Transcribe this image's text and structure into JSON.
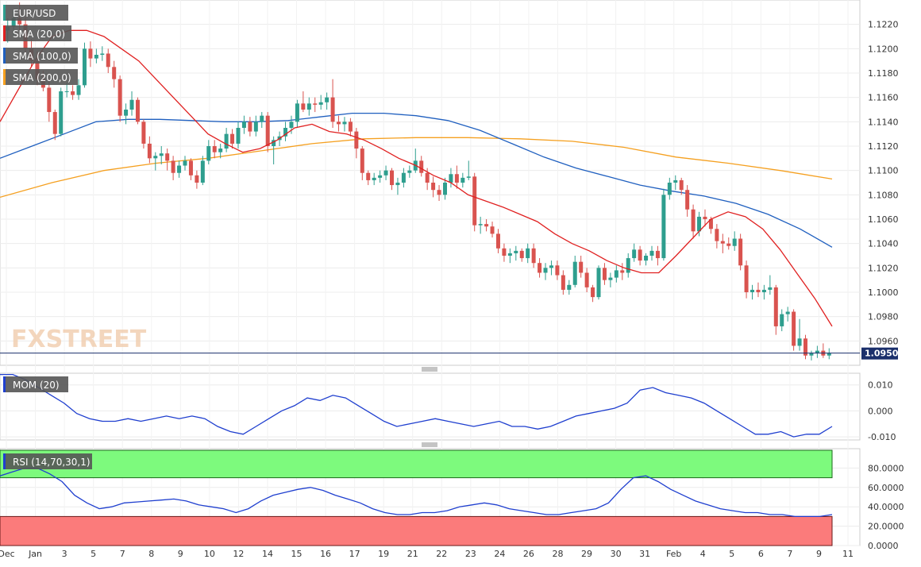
{
  "chart_data": [
    {
      "type": "candlestick",
      "symbol_label": "EUR/USD",
      "indicator_labels": [
        "SMA (20,0)",
        "SMA (100,0)",
        "SMA (200,0)"
      ],
      "indicator_colors": [
        "#e02020",
        "#1f5fbf",
        "#f5a020"
      ],
      "watermark": "FXSTREET",
      "current_price": "1.0950",
      "y_ticks": [
        "1.1220",
        "1.1200",
        "1.1180",
        "1.1160",
        "1.1140",
        "1.1120",
        "1.1100",
        "1.1080",
        "1.1060",
        "1.1040",
        "1.1020",
        "1.1000",
        "1.0980",
        "1.0960"
      ],
      "ylim": [
        1.094,
        1.124
      ],
      "bull_color": "#2e9e8e",
      "bear_color": "#d9534f",
      "candles": [
        [
          1.1215,
          1.1225,
          1.1205,
          1.1218
        ],
        [
          1.1218,
          1.1232,
          1.121,
          1.1225
        ],
        [
          1.1225,
          1.1238,
          1.1215,
          1.122
        ],
        [
          1.122,
          1.1226,
          1.1196,
          1.12
        ],
        [
          1.12,
          1.1208,
          1.1185,
          1.119
        ],
        [
          1.119,
          1.1198,
          1.117,
          1.1175
        ],
        [
          1.1175,
          1.1182,
          1.1165,
          1.1168
        ],
        [
          1.1168,
          1.1175,
          1.114,
          1.1148
        ],
        [
          1.1148,
          1.115,
          1.1125,
          1.113
        ],
        [
          1.113,
          1.1168,
          1.1128,
          1.1165
        ],
        [
          1.1165,
          1.1172,
          1.116,
          1.1165
        ],
        [
          1.1165,
          1.117,
          1.1158,
          1.1162
        ],
        [
          1.1162,
          1.1175,
          1.1158,
          1.117
        ],
        [
          1.117,
          1.1205,
          1.1168,
          1.12
        ],
        [
          1.12,
          1.1206,
          1.1185,
          1.1192
        ],
        [
          1.1192,
          1.12,
          1.1188,
          1.1195
        ],
        [
          1.1195,
          1.1202,
          1.119,
          1.1196
        ],
        [
          1.1196,
          1.12,
          1.118,
          1.1185
        ],
        [
          1.1185,
          1.119,
          1.1168,
          1.1175
        ],
        [
          1.1175,
          1.1178,
          1.114,
          1.1145
        ],
        [
          1.1145,
          1.1155,
          1.1138,
          1.115
        ],
        [
          1.115,
          1.1165,
          1.1145,
          1.1158
        ],
        [
          1.1158,
          1.116,
          1.1138,
          1.114
        ],
        [
          1.114,
          1.1142,
          1.1118,
          1.1122
        ],
        [
          1.1122,
          1.1128,
          1.1106,
          1.111
        ],
        [
          1.111,
          1.1115,
          1.11,
          1.1112
        ],
        [
          1.1112,
          1.112,
          1.1105,
          1.1114
        ],
        [
          1.1114,
          1.1118,
          1.11,
          1.1108
        ],
        [
          1.1108,
          1.1112,
          1.1092,
          1.1098
        ],
        [
          1.1098,
          1.1108,
          1.1094,
          1.1104
        ],
        [
          1.1104,
          1.1112,
          1.11,
          1.1108
        ],
        [
          1.1108,
          1.111,
          1.1092,
          1.1096
        ],
        [
          1.1096,
          1.11,
          1.1085,
          1.109
        ],
        [
          1.109,
          1.1112,
          1.1088,
          1.1108
        ],
        [
          1.1108,
          1.1125,
          1.1105,
          1.112
        ],
        [
          1.112,
          1.1125,
          1.111,
          1.1115
        ],
        [
          1.1115,
          1.1122,
          1.111,
          1.1118
        ],
        [
          1.1118,
          1.1135,
          1.1115,
          1.113
        ],
        [
          1.113,
          1.1134,
          1.1118,
          1.1122
        ],
        [
          1.1122,
          1.114,
          1.1118,
          1.1135
        ],
        [
          1.1135,
          1.1145,
          1.113,
          1.114
        ],
        [
          1.114,
          1.1144,
          1.1128,
          1.1132
        ],
        [
          1.1132,
          1.1145,
          1.1128,
          1.114
        ],
        [
          1.114,
          1.1148,
          1.1135,
          1.1145
        ],
        [
          1.1145,
          1.1148,
          1.1115,
          1.112
        ],
        [
          1.112,
          1.1128,
          1.1105,
          1.1125
        ],
        [
          1.1125,
          1.1132,
          1.112,
          1.1128
        ],
        [
          1.1128,
          1.114,
          1.1124,
          1.1135
        ],
        [
          1.1135,
          1.1145,
          1.113,
          1.114
        ],
        [
          1.114,
          1.1158,
          1.1135,
          1.1155
        ],
        [
          1.1155,
          1.1165,
          1.1148,
          1.115
        ],
        [
          1.115,
          1.116,
          1.1145,
          1.1155
        ],
        [
          1.1155,
          1.116,
          1.1148,
          1.1154
        ],
        [
          1.1154,
          1.1162,
          1.115,
          1.1156
        ],
        [
          1.1156,
          1.1164,
          1.115,
          1.116
        ],
        [
          1.116,
          1.1175,
          1.1135,
          1.114
        ],
        [
          1.114,
          1.1145,
          1.1132,
          1.1138
        ],
        [
          1.1138,
          1.1144,
          1.1132,
          1.114
        ],
        [
          1.114,
          1.1143,
          1.1128,
          1.1132
        ],
        [
          1.1132,
          1.1135,
          1.111,
          1.1118
        ],
        [
          1.1118,
          1.112,
          1.1092,
          1.1098
        ],
        [
          1.1098,
          1.11,
          1.1088,
          1.1092
        ],
        [
          1.1092,
          1.1098,
          1.1088,
          1.1094
        ],
        [
          1.1094,
          1.11,
          1.109,
          1.1096
        ],
        [
          1.1096,
          1.1104,
          1.1092,
          1.11
        ],
        [
          1.11,
          1.1102,
          1.1084,
          1.1088
        ],
        [
          1.1088,
          1.1094,
          1.108,
          1.109
        ],
        [
          1.109,
          1.1102,
          1.1086,
          1.1098
        ],
        [
          1.1098,
          1.1104,
          1.1094,
          1.11
        ],
        [
          1.11,
          1.1118,
          1.1098,
          1.1108
        ],
        [
          1.1108,
          1.1112,
          1.1095,
          1.1098
        ],
        [
          1.1098,
          1.1102,
          1.1084,
          1.109
        ],
        [
          1.109,
          1.1095,
          1.1078,
          1.1084
        ],
        [
          1.1084,
          1.1088,
          1.1075,
          1.108
        ],
        [
          1.108,
          1.1094,
          1.1076,
          1.109
        ],
        [
          1.109,
          1.1102,
          1.1086,
          1.1097
        ],
        [
          1.1097,
          1.1104,
          1.1085,
          1.109
        ],
        [
          1.109,
          1.1098,
          1.1086,
          1.1094
        ],
        [
          1.1094,
          1.1108,
          1.1092,
          1.1095
        ],
        [
          1.1095,
          1.1098,
          1.105,
          1.1055
        ],
        [
          1.1055,
          1.1062,
          1.1048,
          1.1056
        ],
        [
          1.1056,
          1.106,
          1.105,
          1.1054
        ],
        [
          1.1054,
          1.1058,
          1.1045,
          1.1048
        ],
        [
          1.1048,
          1.1052,
          1.1032,
          1.1036
        ],
        [
          1.1036,
          1.104,
          1.1025,
          1.103
        ],
        [
          1.103,
          1.1036,
          1.1024,
          1.1032
        ],
        [
          1.1032,
          1.1038,
          1.1026,
          1.1034
        ],
        [
          1.1034,
          1.1036,
          1.1025,
          1.1028
        ],
        [
          1.1028,
          1.104,
          1.1024,
          1.1036
        ],
        [
          1.1036,
          1.104,
          1.102,
          1.1024
        ],
        [
          1.1024,
          1.1028,
          1.1012,
          1.1016
        ],
        [
          1.1016,
          1.1024,
          1.101,
          1.102
        ],
        [
          1.102,
          1.1026,
          1.1014,
          1.1022
        ],
        [
          1.1022,
          1.1026,
          1.101,
          1.1014
        ],
        [
          1.1014,
          1.1018,
          1.0998,
          1.1002
        ],
        [
          1.1002,
          1.101,
          1.0998,
          1.1006
        ],
        [
          1.1006,
          1.103,
          1.1004,
          1.1025
        ],
        [
          1.1025,
          1.103,
          1.1012,
          1.1016
        ],
        [
          1.1016,
          1.102,
          1.1,
          1.1004
        ],
        [
          1.1004,
          1.1006,
          1.0992,
          1.0996
        ],
        [
          1.0996,
          1.1022,
          1.0994,
          1.102
        ],
        [
          1.102,
          1.1024,
          1.1006,
          1.101
        ],
        [
          1.101,
          1.1016,
          1.1004,
          1.1012
        ],
        [
          1.1012,
          1.1022,
          1.1008,
          1.1018
        ],
        [
          1.1018,
          1.1024,
          1.101,
          1.1016
        ],
        [
          1.1016,
          1.1032,
          1.1012,
          1.1028
        ],
        [
          1.1028,
          1.104,
          1.1025,
          1.1035
        ],
        [
          1.1035,
          1.1038,
          1.1022,
          1.1026
        ],
        [
          1.1026,
          1.1032,
          1.1022,
          1.103
        ],
        [
          1.103,
          1.1038,
          1.1026,
          1.1034
        ],
        [
          1.1034,
          1.1038,
          1.1022,
          1.1028
        ],
        [
          1.1028,
          1.1085,
          1.1026,
          1.108
        ],
        [
          1.108,
          1.1094,
          1.1076,
          1.109
        ],
        [
          1.109,
          1.1096,
          1.1084,
          1.1092
        ],
        [
          1.1092,
          1.1094,
          1.108,
          1.1084
        ],
        [
          1.1084,
          1.1088,
          1.1062,
          1.1068
        ],
        [
          1.1068,
          1.1072,
          1.1044,
          1.105
        ],
        [
          1.105,
          1.1066,
          1.1046,
          1.1062
        ],
        [
          1.1062,
          1.1068,
          1.1054,
          1.106
        ],
        [
          1.106,
          1.1062,
          1.1048,
          1.1052
        ],
        [
          1.1052,
          1.1056,
          1.1036,
          1.1042
        ],
        [
          1.1042,
          1.1048,
          1.1032,
          1.104
        ],
        [
          1.104,
          1.1045,
          1.1035,
          1.1038
        ],
        [
          1.1038,
          1.105,
          1.1034,
          1.1044
        ],
        [
          1.1044,
          1.1048,
          1.1018,
          1.1022
        ],
        [
          1.1022,
          1.1026,
          1.0995,
          1.1
        ],
        [
          1.1,
          1.1006,
          1.0994,
          1.1002
        ],
        [
          1.1002,
          1.1008,
          1.0996,
          1.1
        ],
        [
          1.1,
          1.1006,
          1.0994,
          1.1002
        ],
        [
          1.1002,
          1.1014,
          1.0998,
          1.1004
        ],
        [
          1.1004,
          1.1006,
          1.0965,
          1.0972
        ],
        [
          1.0972,
          1.0986,
          1.0968,
          1.0982
        ],
        [
          1.0982,
          1.0988,
          1.0976,
          1.0984
        ],
        [
          1.0984,
          1.0986,
          1.0952,
          1.0956
        ],
        [
          1.0956,
          1.0978,
          1.0952,
          1.0962
        ],
        [
          1.0962,
          1.0965,
          1.0945,
          1.0948
        ],
        [
          1.0948,
          1.0952,
          1.0944,
          1.095
        ],
        [
          1.095,
          1.0956,
          1.0946,
          1.0952
        ],
        [
          1.0952,
          1.0958,
          1.0946,
          1.0948
        ],
        [
          1.0948,
          1.0954,
          1.0945,
          1.095
        ]
      ],
      "sma20": [
        1.114,
        1.1165,
        1.119,
        1.121,
        1.1215,
        1.1215,
        1.121,
        1.12,
        1.119,
        1.1175,
        1.116,
        1.1145,
        1.113,
        1.1122,
        1.1115,
        1.1118,
        1.1125,
        1.1135,
        1.1138,
        1.1132,
        1.113,
        1.1125,
        1.1118,
        1.111,
        1.1104,
        1.1096,
        1.109,
        1.108,
        1.1075,
        1.107,
        1.1064,
        1.1058,
        1.1048,
        1.104,
        1.1034,
        1.1026,
        1.102,
        1.1016,
        1.1016,
        1.103,
        1.1045,
        1.106,
        1.1066,
        1.1062,
        1.1052,
        1.1035,
        1.1015,
        1.0995,
        1.0972
      ],
      "sma100": [
        1.111,
        1.112,
        1.113,
        1.114,
        1.1142,
        1.1142,
        1.1141,
        1.114,
        1.114,
        1.1141,
        1.1144,
        1.1147,
        1.1147,
        1.1145,
        1.1141,
        1.1133,
        1.1122,
        1.1111,
        1.1102,
        1.1095,
        1.1088,
        1.1083,
        1.1079,
        1.1073,
        1.1064,
        1.1052,
        1.1037
      ],
      "sma200": [
        1.1078,
        1.109,
        1.11,
        1.1106,
        1.111,
        1.1116,
        1.1122,
        1.1126,
        1.1127,
        1.1127,
        1.1126,
        1.1124,
        1.1119,
        1.1111,
        1.1106,
        1.11,
        1.1093
      ],
      "x_labels": [
        "Dec",
        "Jan",
        "3",
        "5",
        "7",
        "8",
        "9",
        "10",
        "12",
        "14",
        "15",
        "16",
        "17",
        "19",
        "21",
        "22",
        "23",
        "24",
        "26",
        "28",
        "29",
        "30",
        "31",
        "Feb",
        "4",
        "5",
        "6",
        "7",
        "9",
        "11"
      ]
    },
    {
      "type": "line",
      "label": "MOM (20)",
      "y_ticks": [
        "0.010",
        "0.000",
        "-0.010"
      ],
      "ylim": [
        -0.0112,
        0.0145
      ],
      "line_color": "#1f3fcf",
      "values": [
        0.014,
        0.014,
        0.012,
        0.009,
        0.006,
        0.003,
        -0.001,
        -0.003,
        -0.004,
        -0.004,
        -0.003,
        -0.004,
        -0.003,
        -0.002,
        -0.003,
        -0.002,
        -0.003,
        -0.006,
        -0.008,
        -0.009,
        -0.006,
        -0.003,
        0.0,
        0.002,
        0.005,
        0.004,
        0.006,
        0.005,
        0.002,
        -0.001,
        -0.004,
        -0.006,
        -0.005,
        -0.004,
        -0.003,
        -0.004,
        -0.005,
        -0.006,
        -0.005,
        -0.004,
        -0.006,
        -0.006,
        -0.007,
        -0.006,
        -0.004,
        -0.002,
        -0.001,
        0.0,
        0.001,
        0.003,
        0.008,
        0.009,
        0.007,
        0.006,
        0.005,
        0.003,
        0.0,
        -0.003,
        -0.006,
        -0.009,
        -0.009,
        -0.008,
        -0.01,
        -0.009,
        -0.009,
        -0.006
      ]
    },
    {
      "type": "line",
      "label": "RSI (14,70,30,1)",
      "y_ticks": [
        "80.0000",
        "60.0000",
        "40.0000",
        "20.0000",
        "0.0000"
      ],
      "ylim": [
        0,
        100
      ],
      "overbought_level": 70,
      "oversold_level": 30,
      "overbought_color": "#7dfa7d",
      "oversold_color": "#fb7b7b",
      "line_color": "#1f3fcf",
      "values": [
        72,
        76,
        80,
        80,
        74,
        66,
        52,
        44,
        38,
        40,
        44,
        45,
        46,
        47,
        48,
        46,
        42,
        40,
        38,
        34,
        38,
        46,
        52,
        55,
        58,
        60,
        57,
        52,
        48,
        44,
        38,
        34,
        32,
        32,
        34,
        34,
        36,
        40,
        42,
        44,
        42,
        38,
        36,
        34,
        32,
        32,
        34,
        36,
        38,
        44,
        58,
        70,
        72,
        66,
        58,
        52,
        46,
        42,
        38,
        36,
        34,
        34,
        32,
        32,
        30,
        30,
        30,
        32
      ]
    }
  ]
}
